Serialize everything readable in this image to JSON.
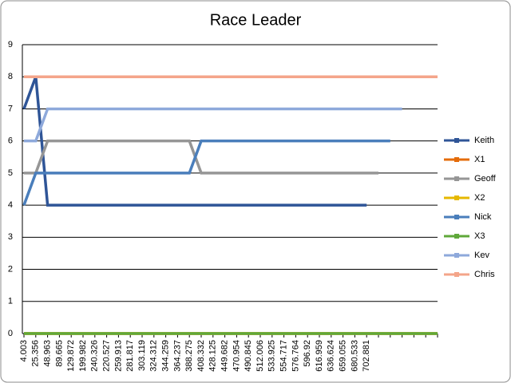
{
  "chart_data": {
    "type": "line",
    "title": "Race Leader",
    "categories": [
      "4.003",
      "25.356",
      "48.963",
      "89.665",
      "129.872",
      "199.982",
      "240.326",
      "220.527",
      "259.913",
      "281.817",
      "303.119",
      "324.312",
      "344.259",
      "364.237",
      "388.275",
      "408.332",
      "428.125",
      "449.682",
      "470.954",
      "490.845",
      "512.006",
      "533.925",
      "554.717",
      "576.764",
      "596.92",
      "616.959",
      "636.624",
      "659.055",
      "680.533",
      "702.881",
      null,
      null,
      null,
      null,
      null,
      null
    ],
    "series": [
      {
        "name": "Keith",
        "color": "#2F5597",
        "values": [
          7,
          8,
          4,
          4,
          4,
          4,
          4,
          4,
          4,
          4,
          4,
          4,
          4,
          4,
          4,
          4,
          4,
          4,
          4,
          4,
          4,
          4,
          4,
          4,
          4,
          4,
          4,
          4,
          4,
          4,
          null,
          null,
          null,
          null,
          null,
          null
        ]
      },
      {
        "name": "X1",
        "color": "#E46C0A",
        "values": [
          0,
          0,
          0,
          0,
          0,
          0,
          0,
          0,
          0,
          0,
          0,
          0,
          0,
          0,
          0,
          0,
          0,
          0,
          0,
          0,
          0,
          0,
          0,
          0,
          0,
          0,
          0,
          0,
          0,
          0,
          0,
          0,
          0,
          0,
          0,
          0
        ]
      },
      {
        "name": "Geoff",
        "color": "#969696",
        "values": [
          5,
          5,
          6,
          6,
          6,
          6,
          6,
          6,
          6,
          6,
          6,
          6,
          6,
          6,
          6,
          5,
          5,
          5,
          5,
          5,
          5,
          5,
          5,
          5,
          5,
          5,
          5,
          5,
          5,
          5,
          5,
          null,
          null,
          null,
          null,
          null
        ]
      },
      {
        "name": "X2",
        "color": "#E6B800",
        "values": [
          0,
          0,
          0,
          0,
          0,
          0,
          0,
          0,
          0,
          0,
          0,
          0,
          0,
          0,
          0,
          0,
          0,
          0,
          0,
          0,
          0,
          0,
          0,
          0,
          0,
          0,
          0,
          0,
          0,
          0,
          0,
          0,
          0,
          0,
          0,
          0
        ]
      },
      {
        "name": "Nick",
        "color": "#4A7EBB",
        "values": [
          4,
          5,
          5,
          5,
          5,
          5,
          5,
          5,
          5,
          5,
          5,
          5,
          5,
          5,
          5,
          6,
          6,
          6,
          6,
          6,
          6,
          6,
          6,
          6,
          6,
          6,
          6,
          6,
          6,
          6,
          6,
          6,
          null,
          null,
          null,
          null
        ]
      },
      {
        "name": "X3",
        "color": "#5FA83A",
        "values": [
          0,
          0,
          0,
          0,
          0,
          0,
          0,
          0,
          0,
          0,
          0,
          0,
          0,
          0,
          0,
          0,
          0,
          0,
          0,
          0,
          0,
          0,
          0,
          0,
          0,
          0,
          0,
          0,
          0,
          0,
          0,
          0,
          0,
          0,
          0,
          0
        ]
      },
      {
        "name": "Kev",
        "color": "#8EA9DB",
        "values": [
          6,
          6,
          7,
          7,
          7,
          7,
          7,
          7,
          7,
          7,
          7,
          7,
          7,
          7,
          7,
          7,
          7,
          7,
          7,
          7,
          7,
          7,
          7,
          7,
          7,
          7,
          7,
          7,
          7,
          7,
          7,
          7,
          7,
          null,
          null,
          null
        ]
      },
      {
        "name": "Chris",
        "color": "#F4A58A",
        "values": [
          8,
          8,
          8,
          8,
          8,
          8,
          8,
          8,
          8,
          8,
          8,
          8,
          8,
          8,
          8,
          8,
          8,
          8,
          8,
          8,
          8,
          8,
          8,
          8,
          8,
          8,
          8,
          8,
          8,
          8,
          8,
          8,
          8,
          8,
          8,
          8
        ]
      }
    ],
    "ylim": [
      0,
      9
    ],
    "yticks": [
      0,
      1,
      2,
      3,
      4,
      5,
      6,
      7,
      8,
      9
    ],
    "grid": true,
    "legend": "right"
  }
}
